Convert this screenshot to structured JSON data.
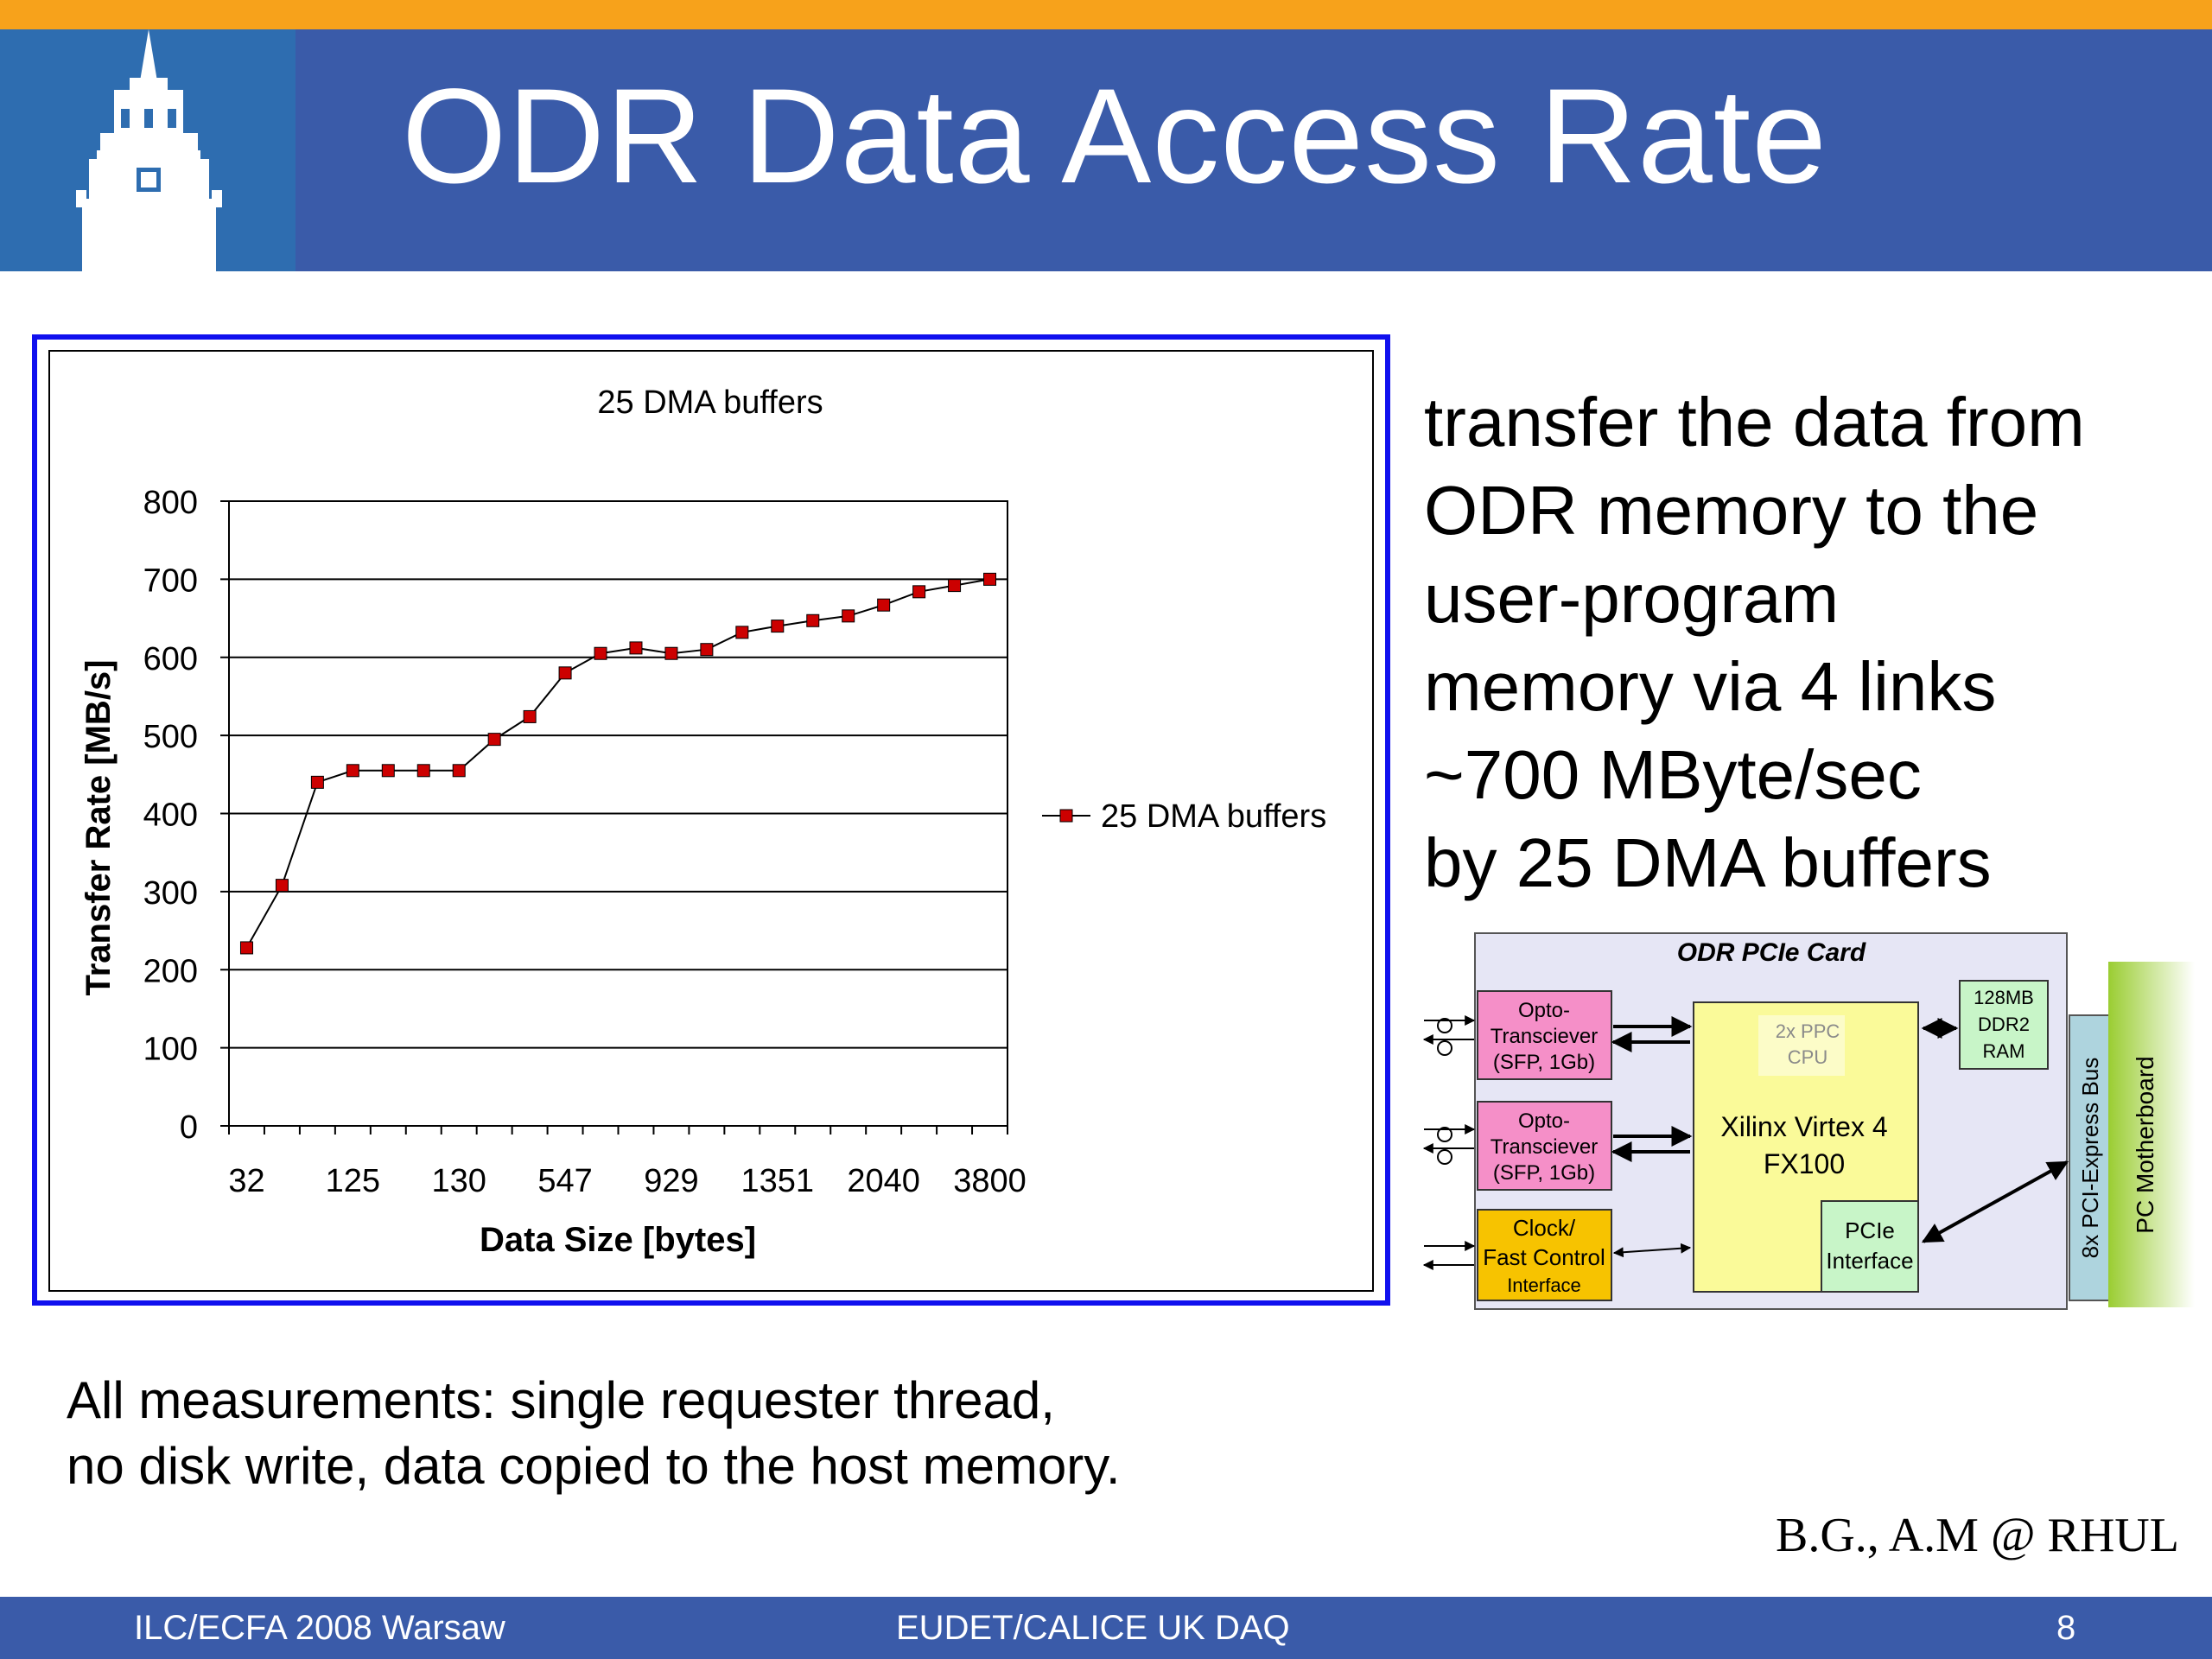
{
  "slide": {
    "title": "ODR Data Access Rate",
    "description_lines": [
      "transfer the data from",
      "ODR memory to the",
      "user-program",
      "memory via 4 links",
      "~700 MByte/sec",
      "by 25 DMA buffers"
    ],
    "notes": [
      "All measurements: single requester thread,",
      "no disk write, data copied to the host memory."
    ],
    "credit": "B.G., A.M @ RHUL"
  },
  "footer": {
    "left": "ILC/ECFA 2008 Warsaw",
    "center": "EUDET/CALICE UK DAQ",
    "page": "8"
  },
  "chart_data": {
    "type": "line",
    "title": "25 DMA buffers",
    "xlabel": "Data Size [bytes]",
    "ylabel": "Transfer Rate [MB/s]",
    "ylim": [
      0,
      800
    ],
    "yticks": [
      0,
      100,
      200,
      300,
      400,
      500,
      600,
      700,
      800
    ],
    "grid": "horizontal",
    "legend_position": "right",
    "x_tick_labels": [
      "32",
      "125",
      "130",
      "547",
      "929",
      "1351",
      "2040",
      "3800"
    ],
    "series": [
      {
        "name": "25 DMA buffers",
        "color": "#cc0000",
        "values": [
          228,
          308,
          440,
          455,
          455,
          455,
          455,
          495,
          524,
          580,
          605,
          612,
          605,
          610,
          632,
          640,
          647,
          653,
          667,
          684,
          692,
          700
        ]
      }
    ]
  },
  "diagram": {
    "card_title": "ODR PCIe Card",
    "opto1": [
      "Opto-",
      "Transciever",
      "(SFP, 1Gb)"
    ],
    "opto2": [
      "Opto-",
      "Transciever",
      "(SFP, 1Gb)"
    ],
    "clock": [
      "Clock/",
      "Fast Control",
      "Interface"
    ],
    "fpga": [
      "Xilinx Virtex 4",
      "FX100"
    ],
    "cpu": [
      "2x PPC",
      "CPU"
    ],
    "ram": [
      "128MB",
      "DDR2",
      "RAM"
    ],
    "pcie_if": [
      "PCIe",
      "Interface"
    ],
    "bus": "8x PCI-Express Bus",
    "motherboard": "PC Motherboard",
    "colors": {
      "card_bg": "#e6e6f5",
      "opto": "#f58fc8",
      "clock": "#f7c300",
      "fpga": "#fafa99",
      "green_box": "#c8f5c8",
      "bus": "#aed4de",
      "motherboard": "#9acd32"
    }
  }
}
